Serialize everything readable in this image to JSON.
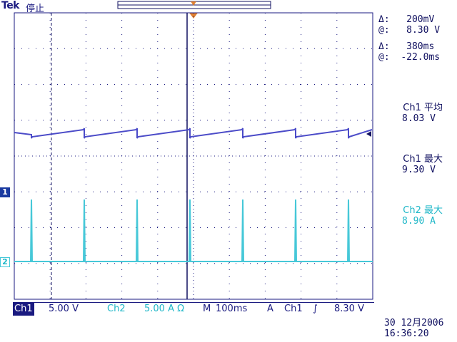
{
  "header": {
    "brand": "Tek",
    "status": "停止"
  },
  "colors": {
    "ch1": "#4b4bc8",
    "ch2": "#46c8d8",
    "text": "#101060",
    "grid": "#1a1a80"
  },
  "cursors": {
    "delta_voltage_symbol": "Δ:",
    "delta_voltage": "200mV",
    "at_voltage_symbol": "@:",
    "at_voltage": "8.30 V",
    "delta_time_symbol": "Δ:",
    "delta_time": "380ms",
    "at_time_symbol": "@:",
    "at_time": "-22.0ms"
  },
  "measurements": [
    {
      "label": "Ch1 平均",
      "value": "8.03 V",
      "color": "ch1"
    },
    {
      "label": "Ch1 最大",
      "value": "9.30 V",
      "color": "ch1"
    },
    {
      "label": "Ch2 最大",
      "value": "8.90 A",
      "color": "ch2"
    }
  ],
  "channel_markers": {
    "ch1": "1",
    "ch2": "2"
  },
  "bottom": {
    "ch1_tag": "Ch1",
    "ch1_scale": "5.00 V",
    "ch2_tag": "Ch2",
    "ch2_scale": "5.00 A Ω",
    "time_tag": "M",
    "time_scale": "100ms",
    "trigger_tag": "A",
    "trigger_source": "Ch1",
    "trigger_slope": "∫",
    "trigger_level": "8.30 V"
  },
  "datetime": {
    "date": "30 12月2006",
    "time": "16:36:20"
  }
}
